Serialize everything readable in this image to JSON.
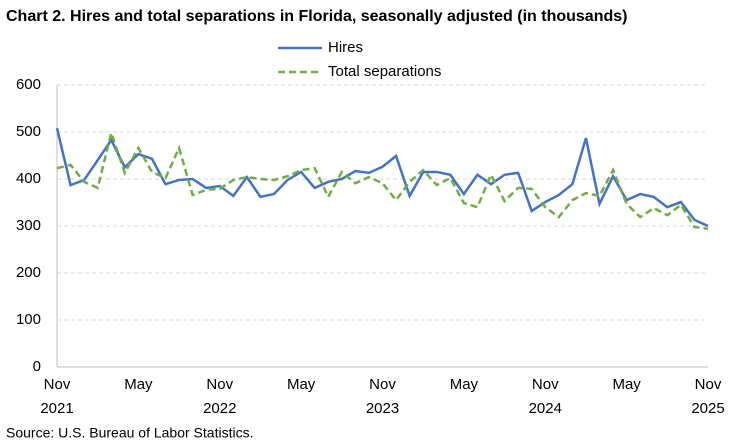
{
  "chart_data": {
    "type": "line",
    "title": "Chart 2. Hires and total separations in Florida, seasonally adjusted (in thousands)",
    "source": "Source: U.S. Bureau of Labor Statistics.",
    "categories": [
      "Nov 2021",
      null,
      null,
      null,
      null,
      null,
      "May",
      null,
      null,
      null,
      null,
      null,
      "Nov 2022",
      null,
      null,
      null,
      null,
      null,
      "May",
      null,
      null,
      null,
      null,
      null,
      "Nov 2023",
      null,
      null,
      null,
      null,
      null,
      "May",
      null,
      null,
      null,
      null,
      null,
      "Nov 2024",
      null,
      null,
      null,
      null,
      null,
      "May",
      null,
      null,
      null,
      null,
      null,
      "Nov 2025"
    ],
    "series": [
      {
        "name": "Hires",
        "color": "#4472c4",
        "dash": false,
        "values": [
          508,
          387,
          398,
          440,
          483,
          425,
          453,
          443,
          389,
          398,
          400,
          381,
          385,
          364,
          404,
          362,
          368,
          398,
          415,
          381,
          394,
          400,
          417,
          413,
          426,
          449,
          364,
          415,
          415,
          409,
          368,
          409,
          389,
          409,
          413,
          332,
          351,
          366,
          389,
          487,
          347,
          406,
          355,
          368,
          362,
          340,
          351,
          313,
          300
        ]
      },
      {
        "name": "Total separations",
        "color": "#70ad47",
        "dash": true,
        "values": [
          423,
          430,
          394,
          381,
          498,
          413,
          466,
          415,
          402,
          466,
          366,
          377,
          379,
          398,
          404,
          400,
          398,
          406,
          419,
          423,
          362,
          415,
          391,
          404,
          391,
          355,
          394,
          419,
          387,
          402,
          349,
          340,
          409,
          353,
          381,
          379,
          340,
          319,
          355,
          370,
          364,
          419,
          347,
          319,
          338,
          323,
          345,
          298,
          294
        ]
      }
    ],
    "ylim": [
      0,
      600
    ],
    "yticks": [
      0,
      100,
      200,
      300,
      400,
      500,
      600
    ],
    "grid": true,
    "legend": "top"
  }
}
